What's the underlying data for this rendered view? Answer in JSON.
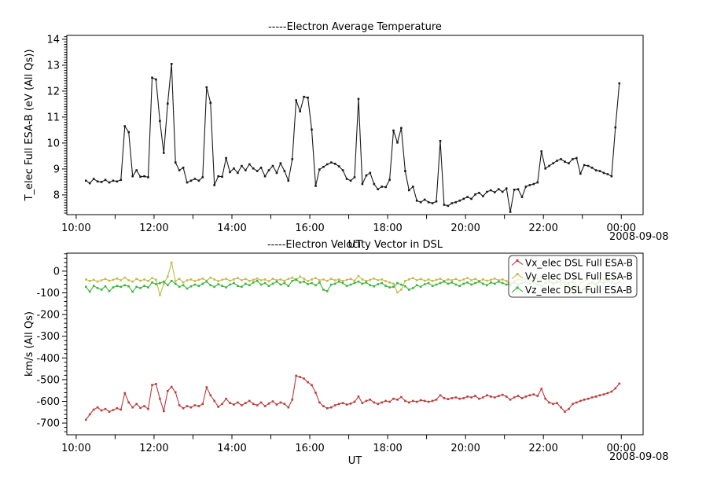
{
  "figure": {
    "background": "#ffffff",
    "ut_label": "UT",
    "date_label": "2008-09-08"
  },
  "chart_data": [
    {
      "type": "line",
      "title": "-----Electron Average Temperature",
      "xlabel": "UT",
      "ylabel": "T_elec Full ESA-B (eV (All Qs))",
      "date_annotation": "2008-09-08",
      "grid": false,
      "legend": null,
      "xlim": [
        9.76,
        24.56
      ],
      "ylim": [
        7.24,
        14.15
      ],
      "x_tick_hours": [
        10,
        12,
        14,
        16,
        18,
        20,
        22,
        24
      ],
      "x_tick_labels": [
        "10:00",
        "12:00",
        "14:00",
        "16:00",
        "18:00",
        "20:00",
        "22:00",
        "00:00"
      ],
      "x_minor_tick_every_hours": 1,
      "y_ticks": [
        8,
        9,
        10,
        11,
        12,
        13,
        14
      ],
      "y_tick_labels": [
        "8",
        "9",
        "10",
        "11",
        "12",
        "13",
        "14"
      ],
      "y_minor_tick_step": 0.1,
      "x_start_hour": 10.25,
      "x_step_minutes": 6,
      "series": [
        {
          "name": "T_elec Full ESA-B",
          "color": "#1a1a1a",
          "marker": "square",
          "values": [
            8.55,
            8.45,
            8.62,
            8.52,
            8.5,
            8.58,
            8.48,
            8.55,
            8.52,
            8.58,
            10.65,
            10.42,
            8.72,
            8.95,
            8.7,
            8.72,
            8.68,
            12.52,
            12.45,
            10.85,
            9.62,
            11.52,
            13.05,
            9.25,
            8.95,
            9.05,
            8.48,
            8.55,
            8.62,
            8.55,
            8.68,
            12.15,
            11.55,
            8.38,
            8.72,
            8.7,
            9.42,
            8.88,
            9.02,
            8.85,
            9.12,
            8.95,
            9.18,
            9.02,
            8.92,
            9.05,
            8.72,
            8.95,
            9.12,
            8.85,
            9.22,
            8.92,
            8.55,
            9.38,
            11.65,
            11.22,
            11.78,
            11.75,
            10.52,
            8.35,
            8.98,
            9.08,
            9.18,
            9.25,
            9.2,
            9.1,
            8.95,
            8.62,
            8.55,
            8.68,
            11.7,
            8.42,
            8.75,
            8.85,
            8.42,
            8.22,
            8.32,
            8.3,
            8.58,
            10.48,
            10.02,
            10.58,
            8.92,
            8.18,
            8.32,
            7.78,
            7.72,
            7.82,
            7.72,
            7.68,
            7.75,
            10.08,
            7.62,
            7.58,
            7.68,
            7.72,
            7.78,
            7.85,
            7.92,
            7.85,
            8.02,
            8.08,
            7.95,
            8.12,
            8.18,
            8.1,
            8.22,
            8.12,
            8.25,
            7.35,
            8.2,
            8.22,
            7.92,
            8.32,
            8.38,
            8.42,
            8.48,
            9.68,
            9.02,
            9.12,
            9.22,
            9.32,
            9.38,
            9.28,
            9.22,
            9.38,
            9.42,
            8.82,
            9.15,
            9.12,
            9.05,
            8.95,
            8.92,
            8.85,
            8.8,
            8.72,
            10.6,
            12.3
          ]
        }
      ]
    },
    {
      "type": "line",
      "title": "-----Electron Velocity Vector in DSL",
      "xlabel": "UT",
      "ylabel": "km/s (All Qs)",
      "date_annotation": "2008-09-08",
      "grid": false,
      "legend": {
        "position": "upper right",
        "entries": [
          "Vx_elec DSL Full ESA-B",
          "Vy_elec DSL Full ESA-B",
          "Vz_elec DSL Full ESA-B"
        ]
      },
      "xlim": [
        9.76,
        24.56
      ],
      "ylim": [
        -754,
        83
      ],
      "x_tick_hours": [
        10,
        12,
        14,
        16,
        18,
        20,
        22,
        24
      ],
      "x_tick_labels": [
        "10:00",
        "12:00",
        "14:00",
        "16:00",
        "18:00",
        "20:00",
        "22:00",
        "00:00"
      ],
      "x_minor_tick_every_hours": 1,
      "y_ticks": [
        0,
        -100,
        -200,
        -300,
        -400,
        -500,
        -600,
        -700
      ],
      "y_tick_labels": [
        "0",
        "-100",
        "-200",
        "-300",
        "-400",
        "-500",
        "-600",
        "-700"
      ],
      "y_minor_tick_step": 20,
      "x_start_hour": 10.25,
      "x_step_minutes": 6,
      "series": [
        {
          "name": "Vx_elec DSL Full ESA-B",
          "color": "#bc3c3c",
          "marker": "square",
          "values": [
            -685,
            -660,
            -638,
            -628,
            -642,
            -635,
            -648,
            -640,
            -632,
            -638,
            -562,
            -605,
            -628,
            -612,
            -630,
            -622,
            -635,
            -525,
            -520,
            -588,
            -645,
            -552,
            -533,
            -558,
            -618,
            -632,
            -622,
            -628,
            -618,
            -622,
            -612,
            -535,
            -572,
            -598,
            -625,
            -612,
            -588,
            -608,
            -615,
            -605,
            -618,
            -608,
            -598,
            -612,
            -618,
            -605,
            -622,
            -610,
            -600,
            -615,
            -605,
            -612,
            -628,
            -592,
            -482,
            -488,
            -495,
            -512,
            -525,
            -560,
            -605,
            -622,
            -632,
            -628,
            -618,
            -612,
            -608,
            -615,
            -610,
            -602,
            -578,
            -608,
            -598,
            -592,
            -605,
            -612,
            -605,
            -598,
            -602,
            -588,
            -592,
            -580,
            -598,
            -605,
            -598,
            -602,
            -595,
            -598,
            -602,
            -598,
            -592,
            -572,
            -585,
            -590,
            -585,
            -582,
            -588,
            -585,
            -578,
            -582,
            -575,
            -588,
            -582,
            -572,
            -578,
            -582,
            -575,
            -570,
            -578,
            -592,
            -582,
            -575,
            -585,
            -578,
            -572,
            -568,
            -575,
            -542,
            -588,
            -605,
            -612,
            -608,
            -628,
            -648,
            -635,
            -612,
            -605,
            -598,
            -592,
            -588,
            -582,
            -578,
            -572,
            -568,
            -562,
            -555,
            -540,
            -518
          ]
        },
        {
          "name": "Vy_elec DSL Full ESA-B",
          "color": "#c4ba4e",
          "marker": "square",
          "values": [
            -38,
            -45,
            -40,
            -48,
            -42,
            -36,
            -44,
            -40,
            -34,
            -42,
            -30,
            -42,
            -48,
            -36,
            -44,
            -38,
            -45,
            -32,
            -40,
            -110,
            -58,
            -25,
            40,
            -45,
            -35,
            -52,
            -42,
            -38,
            -46,
            -40,
            -34,
            -44,
            -30,
            -38,
            -46,
            -40,
            -35,
            -44,
            -38,
            -32,
            -42,
            -36,
            -45,
            -40,
            -34,
            -42,
            -38,
            -46,
            -35,
            -42,
            -38,
            -44,
            -36,
            -30,
            -42,
            -25,
            -35,
            -45,
            -38,
            -32,
            -42,
            -38,
            -45,
            -35,
            -42,
            -38,
            -45,
            -40,
            -36,
            -44,
            -22,
            -38,
            -45,
            -40,
            -34,
            -42,
            -38,
            -46,
            -52,
            -58,
            -98,
            -85,
            -45,
            -38,
            -32,
            -42,
            -36,
            -44,
            -38,
            -45,
            -40,
            -35,
            -45,
            -38,
            -42,
            -36,
            -44,
            -38,
            -32,
            -42,
            -36,
            -45,
            -38,
            -44,
            -40,
            -34,
            -42,
            -38,
            -45,
            -68,
            -45,
            -38,
            -42,
            -36,
            -44,
            -38,
            -34,
            -28,
            -42,
            -38,
            -52,
            -45,
            -58,
            -48,
            -62,
            -85,
            -72,
            -55,
            -45,
            -38,
            -88,
            -55,
            -42,
            -38,
            -45,
            -35,
            -28,
            -22
          ]
        },
        {
          "name": "Vz_elec DSL Full ESA-B",
          "color": "#3cb43c",
          "marker": "square",
          "values": [
            -72,
            -95,
            -68,
            -78,
            -85,
            -70,
            -92,
            -75,
            -68,
            -72,
            -65,
            -70,
            -95,
            -72,
            -78,
            -68,
            -75,
            -52,
            -60,
            -55,
            -48,
            -65,
            -45,
            -58,
            -72,
            -65,
            -80,
            -70,
            -62,
            -68,
            -58,
            -48,
            -65,
            -72,
            -60,
            -68,
            -75,
            -62,
            -55,
            -68,
            -72,
            -58,
            -65,
            -52,
            -45,
            -62,
            -55,
            -68,
            -58,
            -48,
            -62,
            -55,
            -68,
            -45,
            -38,
            -52,
            -48,
            -60,
            -55,
            -65,
            -52,
            -85,
            -92,
            -62,
            -58,
            -48,
            -55,
            -68,
            -62,
            -55,
            -48,
            -58,
            -52,
            -65,
            -70,
            -60,
            -55,
            -68,
            -75,
            -72,
            -55,
            -62,
            -70,
            -85,
            -78,
            -65,
            -72,
            -60,
            -55,
            -68,
            -62,
            -55,
            -48,
            -58,
            -52,
            -62,
            -68,
            -58,
            -52,
            -62,
            -55,
            -48,
            -58,
            -65,
            -52,
            -58,
            -48,
            -55,
            -62,
            -58,
            -52,
            -62,
            -55,
            -48,
            -58,
            -52,
            -62,
            -68,
            -55,
            -48,
            -58,
            -52,
            -45,
            -62,
            -55,
            -48,
            -68,
            -95,
            -82,
            -58,
            -52,
            -62,
            -48,
            -55,
            -42,
            -52,
            -58,
            -48
          ]
        }
      ]
    }
  ]
}
